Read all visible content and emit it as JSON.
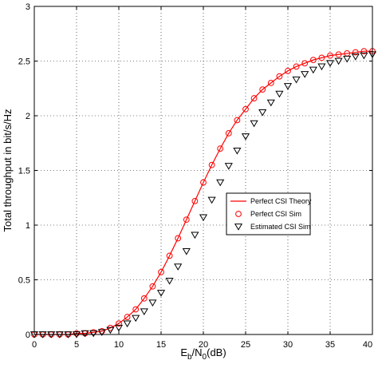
{
  "chart_data": {
    "type": "line",
    "xlabel": {
      "main": "E",
      "sub1": "b",
      "mid": "/N",
      "sub2": "0",
      "tail": "(dB)"
    },
    "ylabel": "Total throughput in bit/s/Hz",
    "xlim": [
      0,
      40
    ],
    "ylim": [
      0,
      3
    ],
    "xticks": [
      "0",
      "5",
      "10",
      "15",
      "20",
      "25",
      "30",
      "35",
      "40"
    ],
    "yticks": [
      "0",
      "0.5",
      "1",
      "1.5",
      "2",
      "2.5",
      "3"
    ],
    "grid": "dotted",
    "legend_position": "right-middle",
    "x": [
      0,
      1,
      2,
      3,
      4,
      5,
      6,
      7,
      8,
      9,
      10,
      11,
      12,
      13,
      14,
      15,
      16,
      17,
      18,
      19,
      20,
      21,
      22,
      23,
      24,
      25,
      26,
      27,
      28,
      29,
      30,
      31,
      32,
      33,
      34,
      35,
      36,
      37,
      38,
      39,
      40
    ],
    "series": [
      {
        "name": "Perfect CSI Theory",
        "style": "line",
        "color": "#ff0000",
        "values": [
          0.0,
          0.0,
          0.0,
          0.0,
          0.0,
          0.01,
          0.01,
          0.02,
          0.03,
          0.06,
          0.1,
          0.16,
          0.23,
          0.33,
          0.44,
          0.57,
          0.72,
          0.88,
          1.05,
          1.22,
          1.39,
          1.55,
          1.7,
          1.84,
          1.96,
          2.06,
          2.16,
          2.24,
          2.3,
          2.36,
          2.41,
          2.45,
          2.48,
          2.51,
          2.53,
          2.55,
          2.56,
          2.57,
          2.58,
          2.59,
          2.59
        ]
      },
      {
        "name": "Perfect CSI Sim",
        "style": "circle",
        "color": "#ff0000",
        "values": [
          0.0,
          0.0,
          0.0,
          0.0,
          0.0,
          0.01,
          0.01,
          0.02,
          0.03,
          0.06,
          0.1,
          0.16,
          0.23,
          0.33,
          0.44,
          0.57,
          0.72,
          0.88,
          1.05,
          1.22,
          1.39,
          1.55,
          1.7,
          1.84,
          1.96,
          2.06,
          2.16,
          2.24,
          2.3,
          2.36,
          2.41,
          2.45,
          2.48,
          2.51,
          2.53,
          2.55,
          2.56,
          2.57,
          2.58,
          2.59,
          2.59
        ]
      },
      {
        "name": "Estimated CSI Sim",
        "style": "triangle-down",
        "color": "#000000",
        "values": [
          0.0,
          0.0,
          0.0,
          0.0,
          0.0,
          0.0,
          0.01,
          0.01,
          0.02,
          0.04,
          0.06,
          0.1,
          0.15,
          0.21,
          0.29,
          0.38,
          0.49,
          0.62,
          0.76,
          0.91,
          1.07,
          1.23,
          1.39,
          1.54,
          1.68,
          1.81,
          1.93,
          2.03,
          2.12,
          2.2,
          2.27,
          2.33,
          2.38,
          2.42,
          2.45,
          2.48,
          2.5,
          2.52,
          2.54,
          2.55,
          2.56
        ]
      }
    ]
  }
}
